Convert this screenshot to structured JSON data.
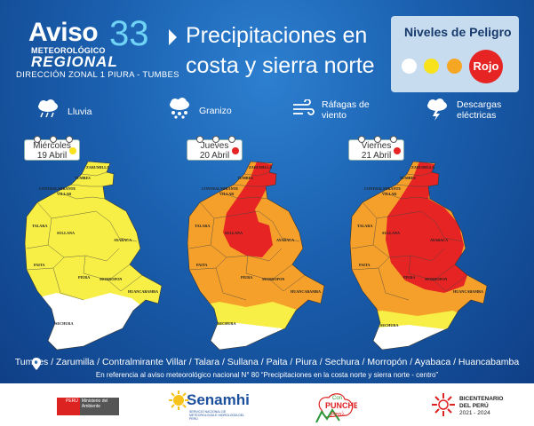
{
  "header": {
    "aviso": "Aviso",
    "number": "33",
    "meteorologico": "METEOROLÓGICO",
    "regional": "REGIONAL",
    "direccion": "DIRECCIÓN ZONAL 1 PIURA - TUMBES",
    "title_line1": "Precipitaciones en",
    "title_line2": "costa y sierra norte"
  },
  "niveles": {
    "title": "Niveles de Peligro",
    "rojo_label": "Rojo",
    "colors": {
      "white": "#ffffff",
      "yellow": "#f7e21b",
      "orange": "#f5a623",
      "red": "#e52423"
    }
  },
  "legend": {
    "lluvia": "Lluvia",
    "granizo": "Granizo",
    "rafagas_1": "Ráfagas de",
    "rafagas_2": "viento",
    "descargas_1": "Descargas",
    "descargas_2": "eléctricas"
  },
  "days": [
    {
      "name": "Miércoles",
      "date": "19 Abril",
      "level_color": "#f7e21b"
    },
    {
      "name": "Jueves",
      "date": "20 Abril",
      "level_color": "#e52423"
    },
    {
      "name": "Viernes",
      "date": "21 Abril",
      "level_color": "#e52423"
    }
  ],
  "map_labels": {
    "zarumilla": "ZARUMILLA",
    "tumbes": "TUMBES",
    "contralmirante": "CONTRALMIRANTE",
    "villar": "VILLAR",
    "talara": "TALARA",
    "sullana": "SULLANA",
    "ayabaca": "AYABACA",
    "paita": "PAITA",
    "piura": "PIURA",
    "morropon": "MORROPON",
    "huancabamba": "HUANCABAMBA",
    "sechura": "SECHURA"
  },
  "footer": {
    "locations": "Tumbes / Zarumilla / Contralmirante Villar / Talara / Sullana / Paita / Piura / Sechura  / Morropón / Ayabaca / Huancabamba",
    "reference": "En referencia al aviso meteorológico nacional N° 80 “Precipitaciones en la costa norte y sierra norte - centro”",
    "peru": "PERÚ",
    "ministerio": "Ministerio del Ambiente",
    "senamhi": "Senamhi",
    "senamhi_sub": "SERVICIO NACIONAL DE METEOROLOGÍA E HIDROLOGÍA DEL PERÚ",
    "con": "Con",
    "puneche": "PUNCHE",
    "peru2": "Perú",
    "bicentenario": "BICENTENARIO",
    "del_peru": "DEL PERÚ",
    "years": "2021 - 2024"
  }
}
